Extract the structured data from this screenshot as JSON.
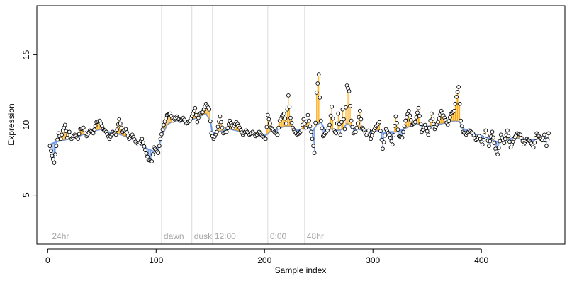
{
  "chart_data": {
    "type": "scatter",
    "title": "",
    "xlabel": "Sample index",
    "ylabel": "Expression",
    "xlim": [
      -10,
      477
    ],
    "ylim": [
      1.5,
      18.5
    ],
    "x_ticks": [
      0,
      100,
      200,
      300,
      400
    ],
    "y_ticks": [
      5,
      10,
      15
    ],
    "grid": false,
    "legend": "none",
    "colors": {
      "fitted_line": "#6f9be8",
      "above_residual": "#ffa500",
      "below_residual": "#6f9be8",
      "phase_line": "#d9d9d9",
      "phase_label": "#a6a6a6",
      "point_edge": "#000000",
      "point_fill": "#ffffff"
    },
    "phase_markers": [
      {
        "x": 2,
        "label": "24hr",
        "line": false
      },
      {
        "x": 105,
        "label": "dawn",
        "line": true
      },
      {
        "x": 133,
        "label": "dusk",
        "line": true
      },
      {
        "x": 152,
        "label": "12:00",
        "line": true
      },
      {
        "x": 203,
        "label": "0:00",
        "line": true
      },
      {
        "x": 237,
        "label": "48hr",
        "line": true
      }
    ],
    "anchors_observed": [
      [
        2,
        8.5
      ],
      [
        4,
        7.8
      ],
      [
        6,
        7.3
      ],
      [
        8,
        8.5
      ],
      [
        10,
        9.4
      ],
      [
        12,
        9.0
      ],
      [
        14,
        9.6
      ],
      [
        16,
        10.0
      ],
      [
        18,
        9.1
      ],
      [
        20,
        9.5
      ],
      [
        22,
        9.0
      ],
      [
        25,
        9.3
      ],
      [
        28,
        9.0
      ],
      [
        30,
        9.7
      ],
      [
        33,
        9.8
      ],
      [
        36,
        9.2
      ],
      [
        39,
        9.6
      ],
      [
        42,
        9.4
      ],
      [
        45,
        10.2
      ],
      [
        48,
        10.3
      ],
      [
        51,
        9.7
      ],
      [
        54,
        9.5
      ],
      [
        57,
        9.0
      ],
      [
        60,
        9.5
      ],
      [
        63,
        9.3
      ],
      [
        66,
        10.4
      ],
      [
        69,
        9.5
      ],
      [
        72,
        9.7
      ],
      [
        75,
        9.0
      ],
      [
        78,
        9.3
      ],
      [
        81,
        8.8
      ],
      [
        84,
        8.6
      ],
      [
        87,
        9.0
      ],
      [
        90,
        8.2
      ],
      [
        93,
        7.5
      ],
      [
        96,
        7.4
      ],
      [
        98,
        8.4
      ],
      [
        100,
        8.2
      ],
      [
        102,
        8.0
      ],
      [
        104,
        9.0
      ],
      [
        107,
        10.0
      ],
      [
        110,
        10.7
      ],
      [
        113,
        10.8
      ],
      [
        116,
        10.3
      ],
      [
        119,
        10.6
      ],
      [
        122,
        10.3
      ],
      [
        125,
        10.5
      ],
      [
        128,
        10.1
      ],
      [
        131,
        10.3
      ],
      [
        134,
        10.8
      ],
      [
        136,
        11.2
      ],
      [
        138,
        10.2
      ],
      [
        140,
        10.8
      ],
      [
        143,
        10.9
      ],
      [
        146,
        11.5
      ],
      [
        149,
        11.1
      ],
      [
        151,
        9.4
      ],
      [
        153,
        9.0
      ],
      [
        156,
        9.5
      ],
      [
        159,
        10.6
      ],
      [
        162,
        9.4
      ],
      [
        165,
        9.5
      ],
      [
        168,
        10.3
      ],
      [
        171,
        9.8
      ],
      [
        174,
        10.2
      ],
      [
        177,
        9.8
      ],
      [
        180,
        9.3
      ],
      [
        183,
        9.6
      ],
      [
        186,
        9.3
      ],
      [
        189,
        9.5
      ],
      [
        192,
        9.2
      ],
      [
        195,
        9.5
      ],
      [
        198,
        9.2
      ],
      [
        201,
        9.0
      ],
      [
        203,
        10.7
      ],
      [
        206,
        9.8
      ],
      [
        209,
        9.5
      ],
      [
        212,
        9.3
      ],
      [
        214,
        10.3
      ],
      [
        216,
        10.6
      ],
      [
        218,
        10.8
      ],
      [
        220,
        10.1
      ],
      [
        222,
        12.1
      ],
      [
        224,
        10.5
      ],
      [
        226,
        9.8
      ],
      [
        228,
        9.5
      ],
      [
        230,
        9.3
      ],
      [
        232,
        9.4
      ],
      [
        234,
        9.6
      ],
      [
        236,
        10.4
      ],
      [
        238,
        9.8
      ],
      [
        240,
        10.7
      ],
      [
        243,
        9.5
      ],
      [
        246,
        8.0
      ],
      [
        248,
        12.3
      ],
      [
        250,
        13.6
      ],
      [
        252,
        10.3
      ],
      [
        254,
        9.2
      ],
      [
        256,
        9.4
      ],
      [
        258,
        9.6
      ],
      [
        260,
        10.0
      ],
      [
        262,
        11.3
      ],
      [
        264,
        9.6
      ],
      [
        266,
        9.4
      ],
      [
        268,
        10.8
      ],
      [
        270,
        9.3
      ],
      [
        272,
        11.1
      ],
      [
        274,
        9.7
      ],
      [
        276,
        12.8
      ],
      [
        278,
        12.4
      ],
      [
        280,
        10.3
      ],
      [
        282,
        9.4
      ],
      [
        284,
        9.5
      ],
      [
        286,
        10.1
      ],
      [
        288,
        11.0
      ],
      [
        290,
        9.8
      ],
      [
        292,
        9.6
      ],
      [
        294,
        9.3
      ],
      [
        296,
        9.6
      ],
      [
        298,
        9.0
      ],
      [
        300,
        9.5
      ],
      [
        303,
        9.9
      ],
      [
        306,
        10.2
      ],
      [
        309,
        8.3
      ],
      [
        312,
        9.7
      ],
      [
        315,
        9.3
      ],
      [
        318,
        8.6
      ],
      [
        321,
        10.6
      ],
      [
        324,
        9.2
      ],
      [
        327,
        9.1
      ],
      [
        330,
        10.3
      ],
      [
        333,
        11.0
      ],
      [
        336,
        10.0
      ],
      [
        339,
        10.2
      ],
      [
        342,
        11.2
      ],
      [
        345,
        9.5
      ],
      [
        348,
        10.0
      ],
      [
        351,
        9.3
      ],
      [
        354,
        10.8
      ],
      [
        357,
        9.7
      ],
      [
        360,
        10.2
      ],
      [
        363,
        11.0
      ],
      [
        366,
        10.5
      ],
      [
        369,
        10.0
      ],
      [
        372,
        10.8
      ],
      [
        375,
        11.0
      ],
      [
        377,
        12.0
      ],
      [
        379,
        12.7
      ],
      [
        381,
        10.3
      ],
      [
        383,
        9.5
      ],
      [
        386,
        9.3
      ],
      [
        389,
        9.6
      ],
      [
        392,
        9.4
      ],
      [
        395,
        8.9
      ],
      [
        398,
        9.2
      ],
      [
        401,
        8.6
      ],
      [
        404,
        9.6
      ],
      [
        407,
        8.5
      ],
      [
        410,
        9.5
      ],
      [
        413,
        8.3
      ],
      [
        415,
        7.9
      ],
      [
        418,
        9.3
      ],
      [
        421,
        8.7
      ],
      [
        424,
        9.6
      ],
      [
        427,
        8.4
      ],
      [
        430,
        9.0
      ],
      [
        433,
        9.4
      ],
      [
        436,
        9.3
      ],
      [
        439,
        8.6
      ],
      [
        442,
        9.0
      ],
      [
        445,
        8.8
      ],
      [
        448,
        8.4
      ],
      [
        451,
        9.4
      ],
      [
        454,
        9.1
      ],
      [
        456,
        8.9
      ],
      [
        458,
        9.3
      ],
      [
        460,
        8.5
      ],
      [
        462,
        9.4
      ]
    ],
    "anchors_fitted": [
      [
        2,
        8.6
      ],
      [
        8,
        8.8
      ],
      [
        14,
        8.9
      ],
      [
        20,
        9.0
      ],
      [
        26,
        9.1
      ],
      [
        32,
        9.3
      ],
      [
        38,
        9.4
      ],
      [
        44,
        9.6
      ],
      [
        50,
        9.7
      ],
      [
        56,
        9.5
      ],
      [
        62,
        9.4
      ],
      [
        68,
        9.3
      ],
      [
        74,
        9.1
      ],
      [
        80,
        8.9
      ],
      [
        86,
        8.6
      ],
      [
        92,
        8.3
      ],
      [
        98,
        8.1
      ],
      [
        102,
        8.4
      ],
      [
        106,
        9.3
      ],
      [
        110,
        10.0
      ],
      [
        116,
        10.3
      ],
      [
        122,
        10.3
      ],
      [
        128,
        10.2
      ],
      [
        134,
        10.4
      ],
      [
        140,
        10.6
      ],
      [
        146,
        10.8
      ],
      [
        150,
        10.3
      ],
      [
        152,
        9.4
      ],
      [
        156,
        9.5
      ],
      [
        162,
        9.6
      ],
      [
        168,
        9.7
      ],
      [
        174,
        9.6
      ],
      [
        180,
        9.4
      ],
      [
        186,
        9.4
      ],
      [
        192,
        9.3
      ],
      [
        198,
        9.2
      ],
      [
        202,
        9.3
      ],
      [
        206,
        9.6
      ],
      [
        212,
        9.7
      ],
      [
        218,
        9.9
      ],
      [
        224,
        9.9
      ],
      [
        230,
        9.6
      ],
      [
        236,
        9.7
      ],
      [
        240,
        9.9
      ],
      [
        244,
        9.5
      ],
      [
        248,
        10.0
      ],
      [
        252,
        10.2
      ],
      [
        256,
        9.6
      ],
      [
        260,
        9.7
      ],
      [
        264,
        9.7
      ],
      [
        268,
        9.6
      ],
      [
        272,
        9.7
      ],
      [
        276,
        10.1
      ],
      [
        280,
        9.9
      ],
      [
        286,
        9.7
      ],
      [
        292,
        9.6
      ],
      [
        298,
        9.5
      ],
      [
        304,
        9.6
      ],
      [
        310,
        9.4
      ],
      [
        316,
        9.5
      ],
      [
        322,
        9.5
      ],
      [
        328,
        9.7
      ],
      [
        334,
        9.9
      ],
      [
        340,
        10.1
      ],
      [
        346,
        9.9
      ],
      [
        352,
        9.9
      ],
      [
        358,
        10.0
      ],
      [
        364,
        10.1
      ],
      [
        370,
        10.2
      ],
      [
        376,
        10.3
      ],
      [
        380,
        10.2
      ],
      [
        384,
        9.7
      ],
      [
        390,
        9.5
      ],
      [
        396,
        9.3
      ],
      [
        402,
        9.2
      ],
      [
        408,
        9.0
      ],
      [
        414,
        8.8
      ],
      [
        420,
        8.9
      ],
      [
        426,
        9.0
      ],
      [
        432,
        9.1
      ],
      [
        438,
        9.0
      ],
      [
        444,
        8.9
      ],
      [
        450,
        9.0
      ],
      [
        456,
        9.0
      ],
      [
        462,
        9.1
      ]
    ]
  }
}
